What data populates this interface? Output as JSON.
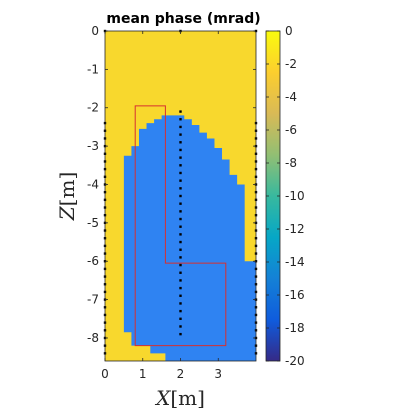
{
  "chart_data": {
    "type": "heatmap",
    "title": "mean phase (mrad)",
    "xlabel": "X[m]",
    "ylabel": "Z[m]",
    "xlim": [
      0,
      4
    ],
    "ylim": [
      -8.6,
      0
    ],
    "x_ticks": [
      "0",
      "1",
      "2",
      "3"
    ],
    "y_ticks": [
      "0",
      "-1",
      "-2",
      "-3",
      "-4",
      "-5",
      "-6",
      "-7",
      "-8"
    ],
    "colorbar": {
      "min": -20,
      "max": 0,
      "ticks": [
        "0",
        "-2",
        "-4",
        "-6",
        "-8",
        "-10",
        "-12",
        "-14",
        "-16",
        "-18",
        "-20"
      ]
    },
    "background_value": 0,
    "anomaly_value": -14.6,
    "anomaly_outline": [
      [
        0.7,
        -3.25
      ],
      [
        0.7,
        -3.0
      ],
      [
        0.9,
        -3.0
      ],
      [
        0.9,
        -2.55
      ],
      [
        1.1,
        -2.55
      ],
      [
        1.1,
        -2.4
      ],
      [
        1.3,
        -2.4
      ],
      [
        1.3,
        -2.3
      ],
      [
        1.5,
        -2.3
      ],
      [
        1.5,
        -2.2
      ],
      [
        2.1,
        -2.2
      ],
      [
        2.1,
        -2.3
      ],
      [
        2.3,
        -2.3
      ],
      [
        2.3,
        -2.45
      ],
      [
        2.5,
        -2.45
      ],
      [
        2.5,
        -2.65
      ],
      [
        2.7,
        -2.65
      ],
      [
        2.7,
        -2.8
      ],
      [
        2.9,
        -2.8
      ],
      [
        2.9,
        -3.05
      ],
      [
        3.1,
        -3.05
      ],
      [
        3.1,
        -3.35
      ],
      [
        3.3,
        -3.35
      ],
      [
        3.3,
        -3.75
      ],
      [
        3.5,
        -3.75
      ],
      [
        3.5,
        -4.0
      ],
      [
        3.7,
        -4.0
      ],
      [
        3.7,
        -6.0
      ],
      [
        4.0,
        -6.0
      ],
      [
        4.0,
        -8.6
      ],
      [
        1.6,
        -8.6
      ],
      [
        1.6,
        -8.4
      ],
      [
        1.2,
        -8.4
      ],
      [
        1.2,
        -8.2
      ],
      [
        0.7,
        -8.2
      ],
      [
        0.7,
        -7.85
      ],
      [
        0.5,
        -7.85
      ],
      [
        0.5,
        -3.25
      ]
    ],
    "model_outline": [
      [
        0.8,
        -1.95
      ],
      [
        1.6,
        -1.95
      ],
      [
        1.6,
        -6.05
      ],
      [
        3.2,
        -6.05
      ],
      [
        3.2,
        -8.2
      ],
      [
        0.8,
        -8.2
      ]
    ],
    "electrodes": {
      "left_x": 0,
      "right_x": 4,
      "center_x": 2,
      "side_z_range": [
        -2.4,
        -8.4
      ],
      "center_z_range_top": [
        0,
        0
      ],
      "center_z_range": [
        -2.1,
        -7.9
      ],
      "spacing": 0.2
    }
  },
  "colors": {
    "background_field": "#F8D82D",
    "anomaly": "#2F83F2",
    "model_outline": "#D63030",
    "electrode": "#000000",
    "colormap": [
      "#352A87",
      "#0F5CDD",
      "#1481D6",
      "#06A7C6",
      "#38B99E",
      "#92BF73",
      "#D9BA56",
      "#FCCE2E",
      "#F9FB0E"
    ]
  }
}
